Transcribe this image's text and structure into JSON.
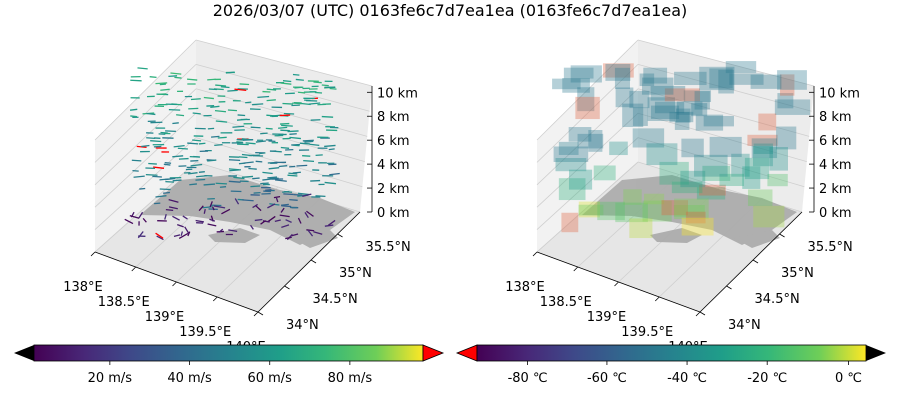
{
  "title": "2026/03/07 (UTC) 0163fe6c7d7ea1ea (0163fe6c7d7ea1ea)",
  "chart_data": [
    {
      "type": "3d-quiver",
      "panel": "left",
      "description_variable": "wind speed",
      "x_ticks": [
        "138°E",
        "138.5°E",
        "139°E",
        "139.5°E",
        "140°E"
      ],
      "y_ticks": [
        "34°N",
        "34.5°N",
        "35°N",
        "35.5°N"
      ],
      "z_ticks": [
        "0 km",
        "2 km",
        "4 km",
        "6 km",
        "8 km",
        "10 km"
      ],
      "colorbar": {
        "colormap": "viridis",
        "ticks": [
          "20 m/s",
          "40 m/s",
          "60 m/s",
          "80 m/s"
        ],
        "extend_low_color": "#000000",
        "extend_high_color": "#ff0000"
      }
    },
    {
      "type": "3d-voxel",
      "panel": "right",
      "description_variable": "temperature",
      "x_ticks": [
        "138°E",
        "138.5°E",
        "139°E",
        "139.5°E",
        "140°E"
      ],
      "y_ticks": [
        "34°N",
        "34.5°N",
        "35°N",
        "35.5°N"
      ],
      "z_ticks": [
        "0 km",
        "2 km",
        "4 km",
        "6 km",
        "8 km",
        "10 km"
      ],
      "colorbar": {
        "colormap": "viridis",
        "ticks": [
          "-80 ℃",
          "-60 ℃",
          "-40 ℃",
          "-20 ℃",
          "0 ℃"
        ],
        "extend_low_color": "#ff0000",
        "extend_high_color": "#000000"
      }
    }
  ]
}
